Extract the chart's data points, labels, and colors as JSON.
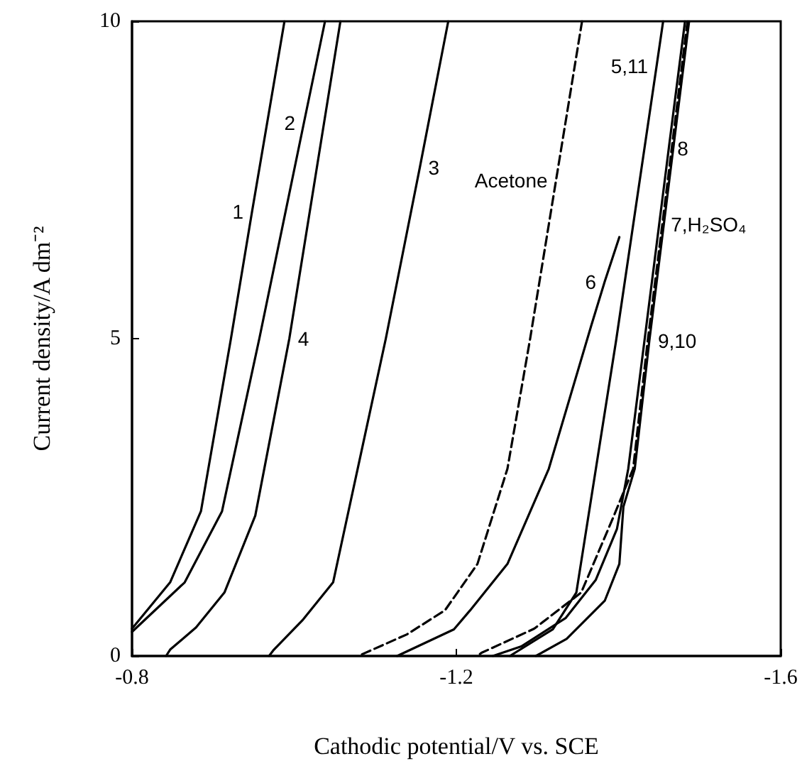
{
  "chart_data": {
    "type": "line",
    "xlabel": "Cathodic potential/V vs. SCE",
    "ylabel": "Current density/A dm⁻²",
    "xlim": [
      -0.8,
      -1.6
    ],
    "xticks": [
      -0.8,
      -1.2,
      -1.6
    ],
    "ylim": [
      0,
      10
    ],
    "yticks": [
      0,
      5,
      10
    ],
    "grid": false,
    "legend": false,
    "marker": "none",
    "line_style": "solid",
    "series": [
      {
        "name": "1",
        "color": "#000000",
        "x": [
          -0.988,
          -0.948,
          -0.922,
          -0.885,
          -0.847,
          -0.8
        ],
        "values": [
          10,
          7,
          5,
          2.28,
          1.16,
          0.43
        ]
      },
      {
        "name": "2",
        "color": "#000000",
        "x": [
          -1.038,
          -1.012,
          -0.957,
          -0.911,
          -0.865,
          -0.8
        ],
        "values": [
          10,
          8.4,
          5,
          2.28,
          1.16,
          0.38
        ]
      },
      {
        "name": "4",
        "color": "#000000",
        "x": [
          -1.057,
          -0.994,
          -0.952,
          -0.914,
          -0.879,
          -0.847,
          -0.842
        ],
        "values": [
          10,
          5,
          2.21,
          1.0,
          0.45,
          0.1,
          0
        ]
      },
      {
        "name": "3",
        "color": "#000000",
        "x": [
          -1.19,
          -1.155,
          -1.113,
          -1.048,
          -1.01,
          -0.975,
          -0.969
        ],
        "values": [
          10,
          7.7,
          5,
          1.16,
          0.56,
          0.1,
          0
        ]
      },
      {
        "name": "Acetone",
        "color": "#000000",
        "line_style": "dashed",
        "x": [
          -1.355,
          -1.323,
          -1.291,
          -1.263,
          -1.226,
          -1.186,
          -1.139,
          -1.079
        ],
        "values": [
          10,
          7.5,
          5,
          2.95,
          1.45,
          0.72,
          0.34,
          0
        ]
      },
      {
        "name": "6",
        "color": "#000000",
        "x": [
          -1.401,
          -1.383,
          -1.366,
          -1.314,
          -1.263,
          -1.217,
          -1.197,
          -1.127
        ],
        "values": [
          6.6,
          5.9,
          5.19,
          2.95,
          1.45,
          0.72,
          0.42,
          0
        ]
      },
      {
        "name": "5,11",
        "color": "#000000",
        "x": [
          -1.455,
          -1.447,
          -1.397,
          -1.348,
          -1.319,
          -1.266
        ],
        "values": [
          10,
          9.3,
          4.97,
          1.0,
          0.42,
          0
        ]
      },
      {
        "name": "8",
        "color": "#000000",
        "x": [
          -1.482,
          -1.462,
          -1.432,
          -1.412,
          -1.398,
          -1.372,
          -1.335,
          -1.28,
          -1.245
        ],
        "values": [
          10,
          8,
          4.97,
          2.95,
          2.0,
          1.2,
          0.6,
          0.15,
          0
        ]
      },
      {
        "name": "7,H₂SO₄",
        "color": "#000000",
        "line_style": "dashed",
        "x": [
          -1.485,
          -1.454,
          -1.436,
          -1.418,
          -1.394,
          -1.354,
          -1.296,
          -1.231,
          -1.226
        ],
        "values": [
          10,
          6.8,
          4.97,
          2.95,
          2.2,
          1.0,
          0.43,
          0.05,
          0
        ]
      },
      {
        "name": "9,10",
        "color": "#000000",
        "x": [
          -1.487,
          -1.438,
          -1.42,
          -1.406,
          -1.401,
          -1.383,
          -1.336,
          -1.298
        ],
        "values": [
          10,
          4.97,
          2.95,
          2.35,
          1.45,
          0.87,
          0.27,
          0
        ]
      }
    ]
  }
}
